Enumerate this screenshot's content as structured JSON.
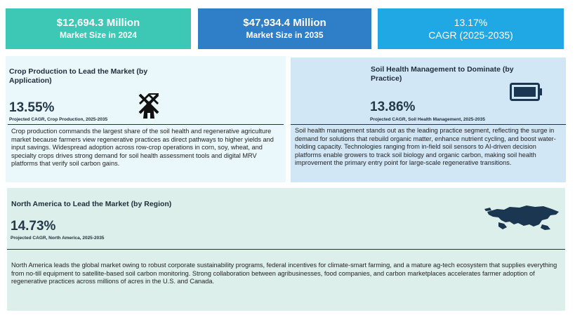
{
  "kpis": [
    {
      "value": "$12,694.3 Million",
      "label": "Market Size in 2024",
      "color": "#3cc8b4"
    },
    {
      "value": "$47,934.4 Million",
      "label": "Market Size in 2035",
      "color": "#2e7fc8"
    },
    {
      "value": "13.17%",
      "label": "CAGR (2025-2035)",
      "color": "#1fa8e4"
    }
  ],
  "application": {
    "heading": "Crop Production to Lead the Market  (by Application)",
    "stat": "13.55%",
    "stat_label": "Projected CAGR, Crop Production, 2025-2035",
    "icon": "windmill-icon",
    "body": "Crop production commands the largest share of the soil health and regenerative agriculture market because farmers view regenerative practices as direct pathways to higher yields and input savings. Widespread adoption across row-crop operations in corn, soy, wheat, and specialty crops drives strong demand for soil health assessment tools and digital MRV platforms that verify soil carbon gains."
  },
  "practice": {
    "heading": "Soil Health Management to Dominate (by Practice)",
    "stat": "13.86%",
    "stat_label": "Projected CAGR, Soil Health Management, 2025-2035",
    "icon": "battery-icon",
    "body": "Soil health management stands out as the leading practice segment, reflecting the surge in demand for solutions that rebuild organic matter, enhance nutrient cycling, and boost water-holding capacity. Technologies ranging from in-field soil sensors to AI-driven decision platforms enable growers to track soil biology and organic carbon, making soil health improvement the primary entry point for large-scale regenerative transitions."
  },
  "region": {
    "heading": "North America to Lead the Market (by Region)",
    "stat": "14.73%",
    "stat_label": "Projected CAGR, North America, 2025-2035",
    "icon": "map-icon",
    "body": "North America leads the global market owing to robust corporate sustainability programs, federal incentives for climate-smart farming, and a mature ag-tech ecosystem that supplies everything from no-till equipment to satellite-based soil carbon monitoring. Strong collaboration between agribusinesses, food companies, and carbon marketplaces accelerates farmer adoption of regenerative practices across millions of acres in the U.S. and Canada."
  }
}
